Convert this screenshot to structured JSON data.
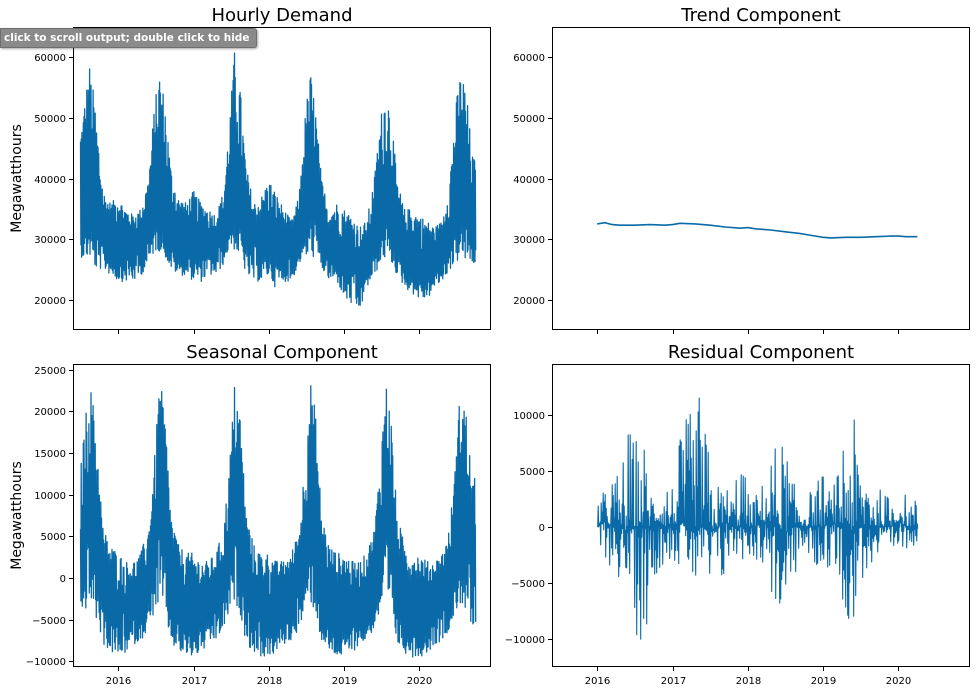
{
  "notebook": {
    "scroll_tooltip": "click to scroll output; double click to hide"
  },
  "colors": {
    "line": "#0a6aa8",
    "axes": "#000000",
    "text": "#000000"
  },
  "chart_data": [
    {
      "id": "hourly",
      "type": "line",
      "title": "Hourly Demand",
      "ylabel": "Megawatthours",
      "xlabel": "",
      "x_range": [
        2015.4,
        2020.95
      ],
      "ylim": [
        15000,
        65000
      ],
      "yticks": [
        20000,
        30000,
        40000,
        50000,
        60000
      ],
      "xticks": [
        2016,
        2017,
        2018,
        2019,
        2020
      ],
      "xtick_labels": [],
      "style": "dense_band",
      "series": [
        {
          "name": "Hourly Demand",
          "x": [
            2015.5,
            2015.55,
            2015.62,
            2015.7,
            2015.8,
            2015.9,
            2016.0,
            2016.1,
            2016.2,
            2016.3,
            2016.4,
            2016.48,
            2016.55,
            2016.62,
            2016.7,
            2016.8,
            2016.9,
            2017.0,
            2017.1,
            2017.2,
            2017.3,
            2017.4,
            2017.48,
            2017.55,
            2017.62,
            2017.7,
            2017.8,
            2017.9,
            2018.0,
            2018.08,
            2018.2,
            2018.3,
            2018.4,
            2018.48,
            2018.55,
            2018.62,
            2018.7,
            2018.8,
            2018.9,
            2019.0,
            2019.1,
            2019.2,
            2019.3,
            2019.4,
            2019.48,
            2019.55,
            2019.62,
            2019.7,
            2019.8,
            2019.9,
            2020.0,
            2020.1,
            2020.2,
            2020.3,
            2020.4,
            2020.48,
            2020.55,
            2020.62,
            2020.7,
            2020.75
          ],
          "upper": [
            49000,
            53000,
            59000,
            52000,
            38000,
            36000,
            37000,
            35000,
            34000,
            35000,
            40000,
            52000,
            58000,
            53000,
            42000,
            37000,
            36000,
            38000,
            36000,
            35000,
            34000,
            38000,
            50000,
            62000,
            55000,
            42000,
            36000,
            37000,
            40000,
            38000,
            35000,
            33000,
            37000,
            50000,
            58000,
            52000,
            40000,
            35000,
            36000,
            35000,
            34000,
            32000,
            33000,
            40000,
            50000,
            55000,
            52000,
            40000,
            35000,
            35000,
            34000,
            33000,
            32000,
            33000,
            40000,
            52000,
            58000,
            55000,
            44000,
            43000
          ],
          "lower": [
            27000,
            27000,
            27000,
            25000,
            25000,
            24000,
            23000,
            23000,
            23000,
            24000,
            26000,
            28000,
            28000,
            27000,
            25000,
            24000,
            24000,
            23000,
            23000,
            24000,
            24000,
            26000,
            29000,
            28000,
            27000,
            24000,
            23000,
            23000,
            24000,
            22000,
            23000,
            23000,
            26000,
            27000,
            27000,
            27000,
            25000,
            23000,
            23000,
            20000,
            19000,
            18000,
            22000,
            24000,
            26000,
            27000,
            26000,
            24000,
            22000,
            21000,
            20000,
            20000,
            22000,
            23000,
            25000,
            26000,
            27000,
            26000,
            26000,
            25500
          ],
          "base": [
            32000,
            33000,
            36000,
            33000,
            31000,
            30000,
            31000,
            30000,
            30000,
            30000,
            32000,
            36000,
            38000,
            36000,
            31000,
            30000,
            30000,
            31000,
            30000,
            30000,
            30000,
            31000,
            35000,
            38000,
            36000,
            31000,
            30000,
            30000,
            31000,
            30000,
            29000,
            29000,
            31000,
            35000,
            37000,
            36000,
            31000,
            29000,
            29000,
            28000,
            27000,
            26000,
            27000,
            30000,
            34000,
            36000,
            35000,
            30000,
            28000,
            28000,
            27000,
            27000,
            27000,
            28000,
            31000,
            35000,
            38000,
            37000,
            33000,
            32000
          ]
        }
      ]
    },
    {
      "id": "trend",
      "type": "line",
      "title": "Trend Component",
      "ylabel": "",
      "xlabel": "",
      "x_range": [
        2015.4,
        2020.95
      ],
      "ylim": [
        15000,
        65000
      ],
      "yticks": [
        20000,
        30000,
        40000,
        50000,
        60000
      ],
      "xticks": [
        2016,
        2017,
        2018,
        2019,
        2020
      ],
      "xtick_labels": [],
      "style": "line",
      "series": [
        {
          "name": "Trend",
          "x": [
            2016.0,
            2016.1,
            2016.2,
            2016.3,
            2016.5,
            2016.7,
            2016.9,
            2017.0,
            2017.1,
            2017.3,
            2017.5,
            2017.7,
            2017.9,
            2018.0,
            2018.1,
            2018.3,
            2018.5,
            2018.7,
            2018.85,
            2019.0,
            2019.1,
            2019.3,
            2019.5,
            2019.7,
            2019.9,
            2020.0,
            2020.1,
            2020.25
          ],
          "values": [
            32500,
            32700,
            32400,
            32300,
            32300,
            32400,
            32300,
            32400,
            32600,
            32500,
            32300,
            32000,
            31800,
            31900,
            31700,
            31500,
            31200,
            30900,
            30600,
            30300,
            30200,
            30300,
            30300,
            30400,
            30500,
            30500,
            30400,
            30400
          ]
        }
      ]
    },
    {
      "id": "seasonal",
      "type": "line",
      "title": "Seasonal Component",
      "ylabel": "Megawatthours",
      "xlabel": "",
      "x_range": [
        2015.4,
        2020.95
      ],
      "ylim": [
        -10700,
        25700
      ],
      "yticks": [
        -10000,
        -5000,
        0,
        5000,
        10000,
        15000,
        20000,
        25000
      ],
      "xticks": [
        2016,
        2017,
        2018,
        2019,
        2020
      ],
      "xtick_labels": [
        "2016",
        "2017",
        "2018",
        "2019",
        "2020"
      ],
      "style": "dense_band",
      "series": [
        {
          "name": "Seasonal",
          "x": [
            2015.5,
            2015.55,
            2015.62,
            2015.7,
            2015.8,
            2015.9,
            2016.0,
            2016.1,
            2016.2,
            2016.3,
            2016.4,
            2016.48,
            2016.55,
            2016.62,
            2016.7,
            2016.8,
            2016.9,
            2017.0,
            2017.1,
            2017.2,
            2017.3,
            2017.4,
            2017.48,
            2017.55,
            2017.62,
            2017.7,
            2017.8,
            2017.9,
            2018.0,
            2018.1,
            2018.2,
            2018.3,
            2018.4,
            2018.48,
            2018.55,
            2018.62,
            2018.7,
            2018.8,
            2018.9,
            2019.0,
            2019.1,
            2019.2,
            2019.3,
            2019.4,
            2019.48,
            2019.55,
            2019.62,
            2019.7,
            2019.8,
            2019.9,
            2020.0,
            2020.1,
            2020.2,
            2020.3,
            2020.4,
            2020.48,
            2020.55,
            2020.62,
            2020.7,
            2020.75
          ],
          "upper": [
            13000,
            18000,
            24000,
            19000,
            6000,
            4000,
            3000,
            2000,
            2000,
            3000,
            6000,
            14000,
            24000,
            20000,
            8000,
            4000,
            3000,
            3000,
            2000,
            2000,
            3000,
            6000,
            14000,
            24000,
            20000,
            8000,
            4000,
            3000,
            3000,
            2000,
            2000,
            3000,
            6000,
            14000,
            24000,
            20000,
            8000,
            4000,
            3000,
            3000,
            2000,
            2000,
            3000,
            6000,
            14000,
            24000,
            20000,
            8000,
            4000,
            3000,
            3000,
            2000,
            2000,
            3000,
            6000,
            14000,
            24000,
            20000,
            12000,
            12000
          ],
          "lower": [
            -6500,
            -4000,
            -3000,
            -5000,
            -8000,
            -9000,
            -9500,
            -9000,
            -8000,
            -7500,
            -6000,
            -4000,
            -3000,
            -4500,
            -8000,
            -9000,
            -9500,
            -9500,
            -9000,
            -8000,
            -7500,
            -6000,
            -4000,
            -3000,
            -4500,
            -8000,
            -9000,
            -9500,
            -9500,
            -9000,
            -8000,
            -7500,
            -6000,
            -4000,
            -3000,
            -4500,
            -8000,
            -9000,
            -9500,
            -9500,
            -9000,
            -8000,
            -7500,
            -6000,
            -4000,
            -3000,
            -4500,
            -8000,
            -9000,
            -9500,
            -9500,
            -9000,
            -8000,
            -7500,
            -6000,
            -4000,
            -3000,
            -4500,
            -6500,
            -6000
          ],
          "base": [
            2000,
            5000,
            9000,
            6000,
            -1000,
            -2500,
            -3000,
            -3500,
            -3000,
            -2500,
            -1000,
            4000,
            9000,
            6000,
            -1000,
            -2500,
            -3000,
            -3500,
            -3000,
            -2500,
            -2000,
            -1000,
            4000,
            9000,
            6000,
            -1000,
            -2500,
            -3000,
            -3500,
            -3000,
            -2500,
            -2000,
            -1000,
            4000,
            9000,
            6000,
            -1000,
            -2500,
            -3000,
            -3500,
            -3000,
            -2500,
            -2000,
            -1000,
            4000,
            9000,
            6000,
            -1000,
            -2500,
            -3000,
            -3500,
            -3000,
            -2500,
            -2000,
            -1000,
            4000,
            9000,
            6000,
            2000,
            2000
          ]
        }
      ]
    },
    {
      "id": "residual",
      "type": "line",
      "title": "Residual Component",
      "ylabel": "",
      "xlabel": "",
      "x_range": [
        2015.4,
        2020.95
      ],
      "ylim": [
        -12500,
        14500
      ],
      "yticks": [
        -10000,
        -5000,
        0,
        5000,
        10000
      ],
      "xticks": [
        2016,
        2017,
        2018,
        2019,
        2020
      ],
      "xtick_labels": [
        "2016",
        "2017",
        "2018",
        "2019",
        "2020"
      ],
      "style": "noisy",
      "series": [
        {
          "name": "Residual",
          "x": [
            2016.0,
            2016.1,
            2016.2,
            2016.3,
            2016.4,
            2016.5,
            2016.6,
            2016.7,
            2016.8,
            2016.9,
            2017.0,
            2017.1,
            2017.2,
            2017.3,
            2017.4,
            2017.5,
            2017.6,
            2017.7,
            2017.8,
            2017.9,
            2018.0,
            2018.1,
            2018.2,
            2018.3,
            2018.4,
            2018.5,
            2018.6,
            2018.7,
            2018.8,
            2018.9,
            2019.0,
            2019.1,
            2019.2,
            2019.3,
            2019.4,
            2019.5,
            2019.6,
            2019.7,
            2019.8,
            2019.9,
            2020.0,
            2020.1,
            2020.25
          ],
          "upper": [
            4000,
            3000,
            5000,
            5000,
            9000,
            8000,
            9000,
            4000,
            3000,
            5000,
            4000,
            8000,
            10000,
            11000,
            13000,
            5000,
            4000,
            4000,
            3000,
            8000,
            3000,
            3000,
            4000,
            7000,
            8000,
            8000,
            4000,
            3000,
            3000,
            4000,
            5000,
            3000,
            5000,
            12000,
            10000,
            6000,
            7000,
            4000,
            3000,
            3000,
            3000,
            3000,
            2500
          ],
          "lower": [
            -5000,
            -3000,
            -4000,
            -5000,
            -6000,
            -9500,
            -11500,
            -7000,
            -4000,
            -3000,
            -3000,
            -4000,
            -4000,
            -6000,
            -5000,
            -7000,
            -6000,
            -5000,
            -3000,
            -3000,
            -3000,
            -3000,
            -4000,
            -6000,
            -9000,
            -10500,
            -5000,
            -3000,
            -3000,
            -4000,
            -4000,
            -4000,
            -5000,
            -8000,
            -10500,
            -5000,
            -4000,
            -4000,
            -3000,
            -4000,
            -3000,
            -2000,
            -1500
          ],
          "base": [
            0,
            500,
            0,
            0,
            -500,
            0,
            0,
            0,
            500,
            0,
            0,
            500,
            0,
            0,
            0,
            -500,
            0,
            500,
            0,
            0,
            0,
            0,
            500,
            0,
            0,
            -500,
            0,
            0,
            0,
            0,
            0,
            500,
            0,
            0,
            -500,
            0,
            0,
            0,
            0,
            0,
            500,
            0,
            0
          ]
        }
      ]
    }
  ]
}
